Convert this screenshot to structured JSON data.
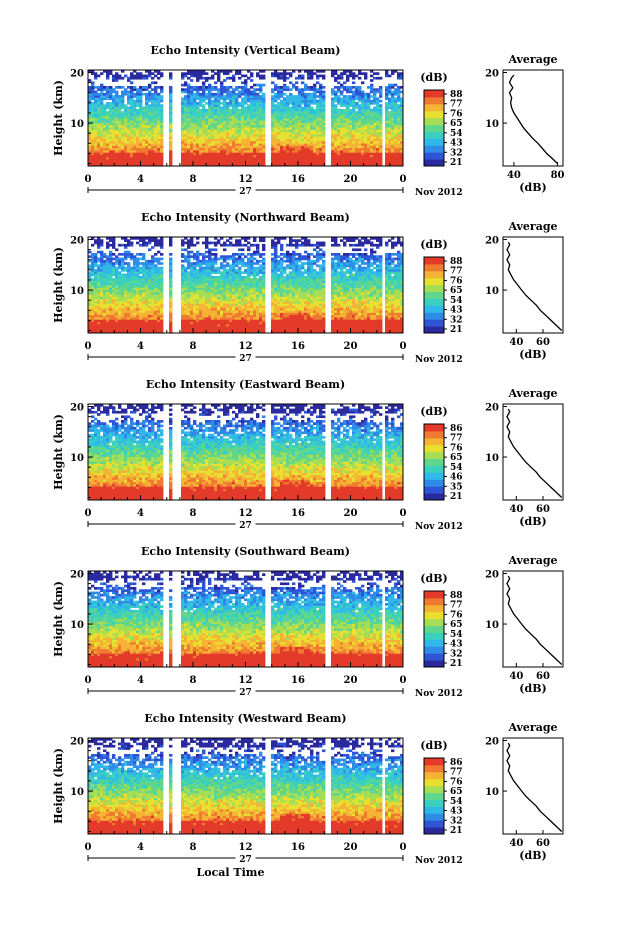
{
  "figure": {
    "xlabel": "Local Time",
    "date_label": "Nov 2012",
    "day_label": "27",
    "ylabel": "Height (km)",
    "cbar_label": "(dB)",
    "avg_title": "Average",
    "avg_xlabel": "(dB)"
  },
  "colorscale": [
    "#2a2a9e",
    "#2d55d6",
    "#2f8be8",
    "#30b8e8",
    "#3ad0c0",
    "#5fd68c",
    "#a5dd55",
    "#e8e030",
    "#f5b335",
    "#f07a30",
    "#e33a2a"
  ],
  "chart_data": [
    {
      "type": "heatmap",
      "title": "Echo Intensity (Vertical Beam)",
      "x_ticks": [
        "0",
        "4",
        "8",
        "12",
        "16",
        "20",
        "0"
      ],
      "y_ticks": [
        "20",
        "10"
      ],
      "xlim": [
        0,
        24
      ],
      "ylim": [
        1.5,
        20.5
      ],
      "cbar_ticks": [
        "88",
        "77",
        "76",
        "65",
        "54",
        "43",
        "32",
        "21"
      ],
      "gaps": [
        [
          5.7,
          6.0
        ],
        [
          6.4,
          7.0
        ],
        [
          13.3,
          13.8
        ],
        [
          18.0,
          18.5
        ],
        [
          22.3,
          22.5
        ]
      ],
      "avg": {
        "xticks": [
          "40",
          "80"
        ],
        "xlim": [
          30,
          85
        ],
        "yticks": [
          "20",
          "10"
        ],
        "profile": [
          [
            80,
            2
          ],
          [
            75,
            3
          ],
          [
            70,
            4
          ],
          [
            66,
            5
          ],
          [
            62,
            6
          ],
          [
            57,
            7
          ],
          [
            53,
            8
          ],
          [
            49,
            9
          ],
          [
            46,
            10
          ],
          [
            43,
            11
          ],
          [
            40,
            12
          ],
          [
            38,
            13
          ],
          [
            37,
            14
          ],
          [
            38,
            15
          ],
          [
            36,
            16
          ],
          [
            39,
            17
          ],
          [
            36,
            18
          ],
          [
            38,
            19
          ],
          [
            40,
            19.5
          ]
        ]
      }
    },
    {
      "type": "heatmap",
      "title": "Echo Intensity (Northward Beam)",
      "x_ticks": [
        "0",
        "4",
        "8",
        "12",
        "16",
        "20",
        "0"
      ],
      "y_ticks": [
        "20",
        "10"
      ],
      "xlim": [
        0,
        24
      ],
      "ylim": [
        1.5,
        20.5
      ],
      "cbar_ticks": [
        "88",
        "77",
        "76",
        "65",
        "54",
        "43",
        "32",
        "21"
      ],
      "gaps": [
        [
          5.7,
          6.0
        ],
        [
          6.4,
          7.0
        ],
        [
          13.3,
          13.8
        ],
        [
          18.0,
          18.5
        ],
        [
          22.3,
          22.5
        ]
      ],
      "avg": {
        "xticks": [
          "40",
          "60"
        ],
        "xlim": [
          30,
          75
        ],
        "yticks": [
          "20",
          "10"
        ],
        "profile": [
          [
            74,
            2
          ],
          [
            70,
            3
          ],
          [
            66,
            4
          ],
          [
            62,
            5
          ],
          [
            58,
            6
          ],
          [
            55,
            7
          ],
          [
            51,
            8
          ],
          [
            47,
            9
          ],
          [
            44,
            10
          ],
          [
            41,
            11
          ],
          [
            38,
            12
          ],
          [
            36,
            13
          ],
          [
            34,
            14
          ],
          [
            35,
            15
          ],
          [
            33,
            16
          ],
          [
            35,
            17
          ],
          [
            33,
            18
          ],
          [
            35,
            19
          ],
          [
            34,
            19.5
          ]
        ]
      }
    },
    {
      "type": "heatmap",
      "title": "Echo Intensity (Eastward Beam)",
      "x_ticks": [
        "0",
        "4",
        "8",
        "12",
        "16",
        "20",
        "0"
      ],
      "y_ticks": [
        "20",
        "10"
      ],
      "xlim": [
        0,
        24
      ],
      "ylim": [
        1.5,
        20.5
      ],
      "cbar_ticks": [
        "86",
        "77",
        "76",
        "65",
        "54",
        "46",
        "35",
        "21"
      ],
      "gaps": [
        [
          5.7,
          6.0
        ],
        [
          6.4,
          7.0
        ],
        [
          13.3,
          13.8
        ],
        [
          18.0,
          18.5
        ],
        [
          22.3,
          22.5
        ]
      ],
      "avg": {
        "xticks": [
          "40",
          "60"
        ],
        "xlim": [
          30,
          75
        ],
        "yticks": [
          "20",
          "10"
        ],
        "profile": [
          [
            74,
            2
          ],
          [
            70,
            3
          ],
          [
            66,
            4
          ],
          [
            62,
            5
          ],
          [
            58,
            6
          ],
          [
            55,
            7
          ],
          [
            51,
            8
          ],
          [
            47,
            9
          ],
          [
            44,
            10
          ],
          [
            41,
            11
          ],
          [
            38,
            12
          ],
          [
            36,
            13
          ],
          [
            34,
            14
          ],
          [
            35,
            15
          ],
          [
            33,
            16
          ],
          [
            35,
            17
          ],
          [
            33,
            18
          ],
          [
            35,
            19
          ],
          [
            34,
            19.5
          ]
        ]
      }
    },
    {
      "type": "heatmap",
      "title": "Echo Intensity (Southward Beam)",
      "x_ticks": [
        "0",
        "4",
        "8",
        "12",
        "16",
        "20",
        "0"
      ],
      "y_ticks": [
        "20",
        "10"
      ],
      "xlim": [
        0,
        24
      ],
      "ylim": [
        1.5,
        20.5
      ],
      "cbar_ticks": [
        "88",
        "77",
        "76",
        "65",
        "54",
        "43",
        "32",
        "21"
      ],
      "gaps": [
        [
          5.7,
          6.0
        ],
        [
          6.4,
          7.0
        ],
        [
          13.3,
          13.8
        ],
        [
          18.0,
          18.5
        ],
        [
          22.3,
          22.5
        ]
      ],
      "avg": {
        "xticks": [
          "40",
          "60"
        ],
        "xlim": [
          30,
          75
        ],
        "yticks": [
          "20",
          "10"
        ],
        "profile": [
          [
            74,
            2
          ],
          [
            70,
            3
          ],
          [
            66,
            4
          ],
          [
            62,
            5
          ],
          [
            58,
            6
          ],
          [
            55,
            7
          ],
          [
            51,
            8
          ],
          [
            47,
            9
          ],
          [
            44,
            10
          ],
          [
            41,
            11
          ],
          [
            38,
            12
          ],
          [
            36,
            13
          ],
          [
            34,
            14
          ],
          [
            35,
            15
          ],
          [
            33,
            16
          ],
          [
            35,
            17
          ],
          [
            33,
            18
          ],
          [
            35,
            19
          ],
          [
            34,
            19.5
          ]
        ]
      }
    },
    {
      "type": "heatmap",
      "title": "Echo Intensity (Westward Beam)",
      "x_ticks": [
        "0",
        "4",
        "8",
        "12",
        "16",
        "20",
        "0"
      ],
      "y_ticks": [
        "20",
        "10"
      ],
      "xlim": [
        0,
        24
      ],
      "ylim": [
        1.5,
        20.5
      ],
      "cbar_ticks": [
        "86",
        "77",
        "76",
        "65",
        "54",
        "43",
        "32",
        "21"
      ],
      "gaps": [
        [
          5.7,
          6.0
        ],
        [
          6.4,
          7.0
        ],
        [
          13.3,
          13.8
        ],
        [
          18.0,
          18.5
        ],
        [
          22.3,
          22.5
        ]
      ],
      "avg": {
        "xticks": [
          "40",
          "60"
        ],
        "xlim": [
          30,
          75
        ],
        "yticks": [
          "20",
          "10"
        ],
        "profile": [
          [
            74,
            2
          ],
          [
            70,
            3
          ],
          [
            66,
            4
          ],
          [
            62,
            5
          ],
          [
            58,
            6
          ],
          [
            55,
            7
          ],
          [
            51,
            8
          ],
          [
            47,
            9
          ],
          [
            44,
            10
          ],
          [
            41,
            11
          ],
          [
            38,
            12
          ],
          [
            36,
            13
          ],
          [
            34,
            14
          ],
          [
            35,
            15
          ],
          [
            33,
            16
          ],
          [
            35,
            17
          ],
          [
            33,
            18
          ],
          [
            35,
            19
          ],
          [
            34,
            19.5
          ]
        ]
      }
    }
  ]
}
